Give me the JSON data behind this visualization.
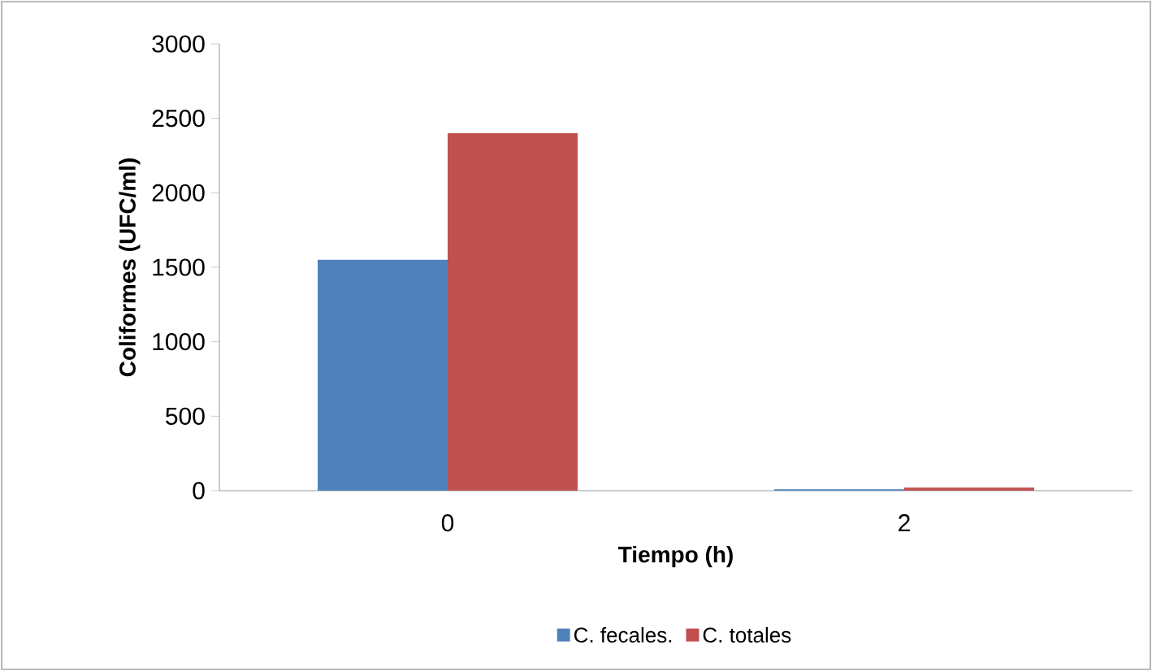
{
  "chart_data": {
    "type": "bar",
    "xlabel": "Tiempo (h)",
    "ylabel": "Coliformes (UFC/ml)",
    "categories": [
      "0",
      "2"
    ],
    "series": [
      {
        "name": "C. fecales.",
        "color": "#4f81bd",
        "values": [
          1550,
          10
        ]
      },
      {
        "name": "C. totales",
        "color": "#c0504d",
        "values": [
          2400,
          20
        ]
      }
    ],
    "ylim": [
      0,
      3000
    ],
    "yticks": [
      0,
      500,
      1000,
      1500,
      2000,
      2500,
      3000
    ],
    "legend": "bottom"
  }
}
